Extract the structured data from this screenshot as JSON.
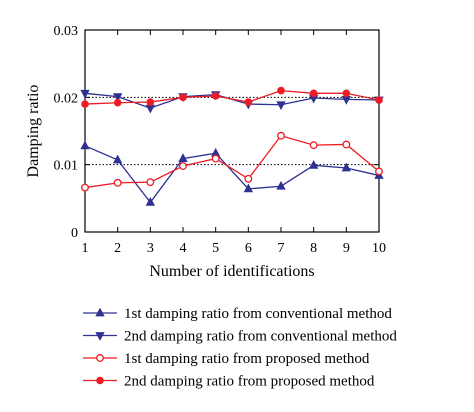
{
  "chart_data": {
    "type": "line",
    "xlabel": "Number of identifications",
    "ylabel": "Damping ratio",
    "x": [
      1,
      2,
      3,
      4,
      5,
      6,
      7,
      8,
      9,
      10
    ],
    "xlim": [
      1,
      10
    ],
    "ylim": [
      0,
      0.03
    ],
    "x_ticks": [
      "1",
      "2",
      "3",
      "4",
      "5",
      "6",
      "7",
      "8",
      "9",
      "10"
    ],
    "y_ticks": [
      "0",
      "0.01",
      "0.02",
      "0.03"
    ],
    "reference_lines": [
      0.01,
      0.02
    ],
    "legend_position": "bottom",
    "series": [
      {
        "name": "1st damping ratio from conventional method",
        "color": "#2e3192",
        "marker": "triangle-up-filled",
        "values": [
          0.0128,
          0.0107,
          0.0044,
          0.0109,
          0.0117,
          0.0064,
          0.0068,
          0.0099,
          0.0095,
          0.0084
        ]
      },
      {
        "name": "2nd damping ratio from conventional method",
        "color": "#2e3192",
        "marker": "triangle-down-filled",
        "values": [
          0.0206,
          0.0201,
          0.0184,
          0.0201,
          0.0204,
          0.019,
          0.0189,
          0.0199,
          0.0197,
          0.0196
        ]
      },
      {
        "name": "1st damping ratio from proposed method",
        "color": "#ed1c24",
        "marker": "circle-open",
        "values": [
          0.0066,
          0.0073,
          0.0074,
          0.0098,
          0.0109,
          0.0079,
          0.0143,
          0.0129,
          0.013,
          0.009
        ]
      },
      {
        "name": "2nd damping ratio from proposed method",
        "color": "#ed1c24",
        "marker": "circle-filled",
        "values": [
          0.019,
          0.0192,
          0.0193,
          0.02,
          0.0202,
          0.0193,
          0.021,
          0.0206,
          0.0206,
          0.0196
        ]
      }
    ]
  }
}
